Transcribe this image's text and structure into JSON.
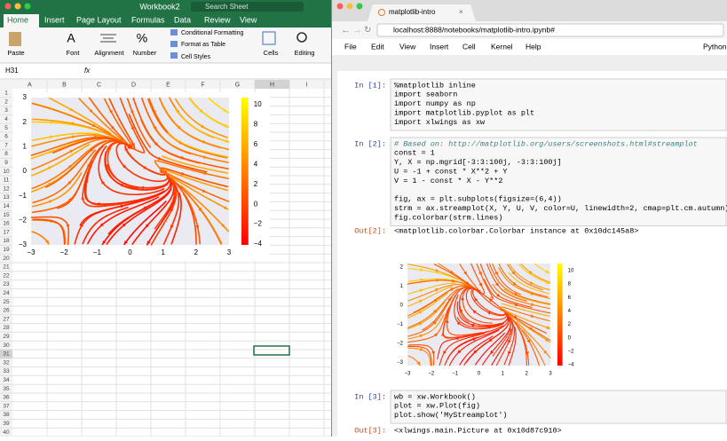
{
  "excel": {
    "title": "Workbook2",
    "search": "Search Sheet",
    "tabs": [
      "Home",
      "Insert",
      "Page Layout",
      "Formulas",
      "Data",
      "Review",
      "View"
    ],
    "ribbon": {
      "paste": "Paste",
      "font": "Font",
      "alignment": "Alignment",
      "number": "Number",
      "conditional": "Conditional Formatting",
      "format_table": "Format as Table",
      "cell_styles": "Cell Styles",
      "cells": "Cells",
      "editing": "Editing"
    },
    "name_box": "H31",
    "fx": "fx",
    "columns": [
      "A",
      "B",
      "C",
      "D",
      "E",
      "F",
      "G",
      "H",
      "I"
    ],
    "rows": [
      "1",
      "2",
      "3",
      "4",
      "5",
      "6",
      "7",
      "8",
      "9",
      "10",
      "11",
      "12",
      "13",
      "14",
      "15",
      "16",
      "17",
      "18",
      "19",
      "20",
      "21",
      "22",
      "23",
      "24",
      "25",
      "26",
      "27",
      "28",
      "29",
      "30",
      "31",
      "32",
      "33",
      "34",
      "35",
      "36",
      "37",
      "38",
      "39",
      "40"
    ],
    "plot": {
      "xticks": [
        "−3",
        "−2",
        "−1",
        "0",
        "1",
        "2",
        "3"
      ],
      "yticks": [
        "3",
        "2",
        "1",
        "0",
        "−1",
        "−2",
        "−3"
      ],
      "cbar_ticks": [
        "10",
        "8",
        "6",
        "4",
        "2",
        "0",
        "−2",
        "−4"
      ]
    }
  },
  "browser": {
    "tab": "matplotlib-intro",
    "url": "localhost:8888/notebooks/matplotlib-intro.ipynb#"
  },
  "jupyter": {
    "menu": [
      "File",
      "Edit",
      "View",
      "Insert",
      "Cell",
      "Kernel",
      "Help"
    ],
    "kernel": "Python",
    "cells": [
      {
        "prompt": "In [1]:",
        "lines": [
          "%matplotlib inline",
          "import seaborn",
          "import numpy as np",
          "import matplotlib.pyplot as plt",
          "import xlwings as xw"
        ]
      },
      {
        "prompt": "In [2]:",
        "lines": [
          "# Based on: http://matplotlib.org/users/screenshots.html#streamplot",
          "const = 1",
          "Y, X = np.mgrid[-3:3:100j, -3:3:100j]",
          "U = -1 + const * X**2 + Y",
          "V = 1 - const * X - Y**2",
          "",
          "fig, ax = plt.subplots(figsize=(6,4))",
          "strm = ax.streamplot(X, Y, U, V, color=U, linewidth=2, cmap=plt.cm.autumn)",
          "fig.colorbar(strm.lines)"
        ]
      },
      {
        "prompt": "In [3]:",
        "lines": [
          "wb = xw.Workbook()",
          "plot = xw.Plot(fig)",
          "plot.show('MyStreamplot')"
        ]
      }
    ],
    "outputs": [
      {
        "prompt": "Out[2]:",
        "text": "<matplotlib.colorbar.Colorbar instance at 0x10dc145a8>"
      },
      {
        "prompt": "Out[3]:",
        "text": "<xlwings.main.Picture at 0x10d87c910>"
      }
    ],
    "plot": {
      "xticks": [
        "−3",
        "−2",
        "−1",
        "0",
        "1",
        "2",
        "3"
      ],
      "yticks": [
        "2",
        "1",
        "0",
        "−1",
        "−2",
        "−3"
      ],
      "cbar_ticks": [
        "10",
        "8",
        "6",
        "4",
        "2",
        "0",
        "−2",
        "−4"
      ]
    }
  }
}
